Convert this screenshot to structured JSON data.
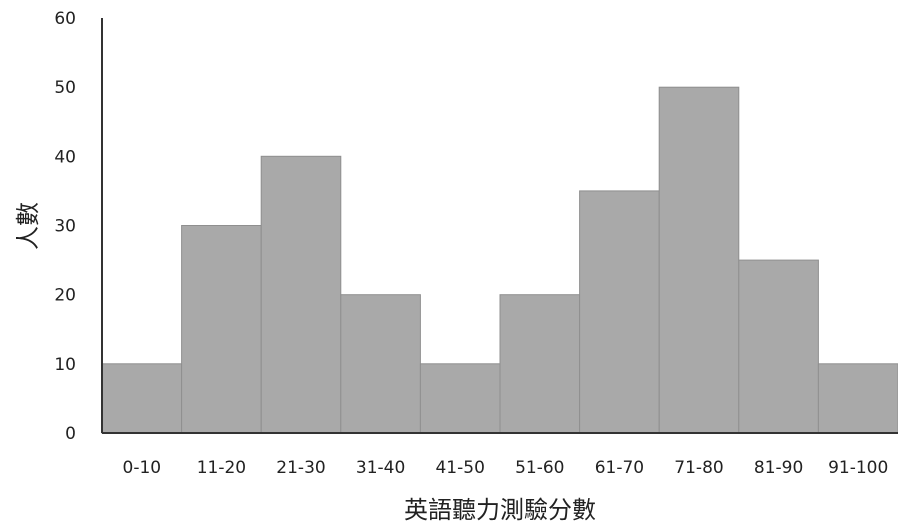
{
  "chart_data": {
    "type": "bar",
    "categories": [
      "0-10",
      "11-20",
      "21-30",
      "31-40",
      "41-50",
      "51-60",
      "61-70",
      "71-80",
      "81-90",
      "91-100"
    ],
    "values": [
      10,
      30,
      40,
      20,
      10,
      20,
      35,
      50,
      25,
      10
    ],
    "title": "",
    "xlabel": "英語聽力測驗分數",
    "ylabel": "人數",
    "ylim": [
      0,
      60
    ],
    "yticks": [
      "0",
      "10",
      "20",
      "30",
      "40",
      "50",
      "60"
    ],
    "grid": false,
    "bar_color": "#a9a9a9"
  }
}
